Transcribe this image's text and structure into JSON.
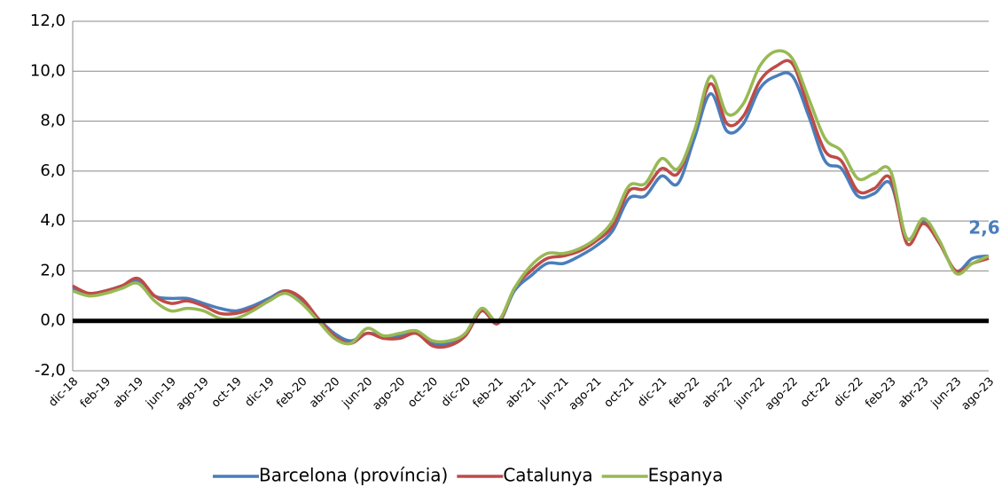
{
  "chart_data": {
    "type": "line",
    "categories": [
      "dic-18",
      null,
      "feb-19",
      null,
      "abr-19",
      null,
      "jun-19",
      null,
      "ago-19",
      null,
      "oct-19",
      null,
      "dic-19",
      null,
      "feb-20",
      null,
      "abr-20",
      null,
      "jun-20",
      null,
      "ago-20",
      null,
      "oct-20",
      null,
      "dic-20",
      null,
      "feb-21",
      null,
      "abr-21",
      null,
      "jun-21",
      null,
      "ago-21",
      null,
      "oct-21",
      null,
      "dic-21",
      null,
      "feb-22",
      null,
      "abr-22",
      null,
      "jun-22",
      null,
      "ago-22",
      null,
      "oct-22",
      null,
      "dic-22",
      null,
      "feb-23",
      null,
      "abr-23",
      null,
      "jun-23",
      null,
      "ago-23"
    ],
    "series": [
      {
        "name": "Barcelona (província)",
        "color": "#4a7ebb",
        "values": [
          1.3,
          1.1,
          1.2,
          1.4,
          1.6,
          1.0,
          0.9,
          0.9,
          0.7,
          0.5,
          0.4,
          0.6,
          0.9,
          1.2,
          0.8,
          0.1,
          -0.5,
          -0.8,
          -0.5,
          -0.6,
          -0.6,
          -0.4,
          -0.9,
          -0.9,
          -0.6,
          0.4,
          -0.1,
          1.2,
          1.8,
          2.3,
          2.3,
          2.6,
          3.0,
          3.6,
          4.9,
          5.0,
          5.8,
          5.5,
          7.3,
          9.1,
          7.6,
          7.9,
          9.3,
          9.8,
          9.8,
          8.2,
          6.4,
          6.1,
          5.0,
          5.1,
          5.5,
          3.3,
          4.0,
          3.1,
          2.0,
          2.5,
          2.6
        ]
      },
      {
        "name": "Catalunya",
        "color": "#be4b48",
        "values": [
          1.4,
          1.1,
          1.2,
          1.4,
          1.7,
          1.0,
          0.7,
          0.8,
          0.6,
          0.3,
          0.3,
          0.5,
          0.8,
          1.2,
          0.9,
          0.1,
          -0.6,
          -0.9,
          -0.5,
          -0.7,
          -0.7,
          -0.5,
          -1.0,
          -1.0,
          -0.6,
          0.4,
          -0.1,
          1.3,
          2.0,
          2.5,
          2.6,
          2.8,
          3.2,
          3.8,
          5.2,
          5.3,
          6.1,
          5.9,
          7.6,
          9.5,
          7.9,
          8.2,
          9.6,
          10.2,
          10.3,
          8.5,
          6.8,
          6.4,
          5.2,
          5.3,
          5.7,
          3.1,
          3.9,
          3.1,
          2.0,
          2.3,
          2.5
        ]
      },
      {
        "name": "Espanya",
        "color": "#98b954",
        "values": [
          1.2,
          1.0,
          1.1,
          1.3,
          1.5,
          0.8,
          0.4,
          0.5,
          0.4,
          0.1,
          0.1,
          0.4,
          0.8,
          1.1,
          0.7,
          0.0,
          -0.7,
          -0.9,
          -0.3,
          -0.6,
          -0.5,
          -0.4,
          -0.8,
          -0.8,
          -0.5,
          0.5,
          0.0,
          1.3,
          2.2,
          2.7,
          2.7,
          2.9,
          3.3,
          4.0,
          5.4,
          5.5,
          6.5,
          6.1,
          7.6,
          9.8,
          8.3,
          8.7,
          10.2,
          10.8,
          10.5,
          8.9,
          7.3,
          6.8,
          5.7,
          5.9,
          6.0,
          3.3,
          4.1,
          3.2,
          1.9,
          2.3,
          2.6
        ]
      }
    ],
    "ylim": [
      -2,
      12
    ],
    "yticks": [
      {
        "value": -2,
        "label": "-2,0"
      },
      {
        "value": 0,
        "label": "0,0"
      },
      {
        "value": 2,
        "label": "2,0"
      },
      {
        "value": 4,
        "label": "4,0"
      },
      {
        "value": 6,
        "label": "6,0"
      },
      {
        "value": 8,
        "label": "8,0"
      },
      {
        "value": 10,
        "label": "10,0"
      },
      {
        "value": 12,
        "label": "12,0"
      }
    ],
    "grid": true,
    "legend": "bottom",
    "annotation": "2,6"
  }
}
